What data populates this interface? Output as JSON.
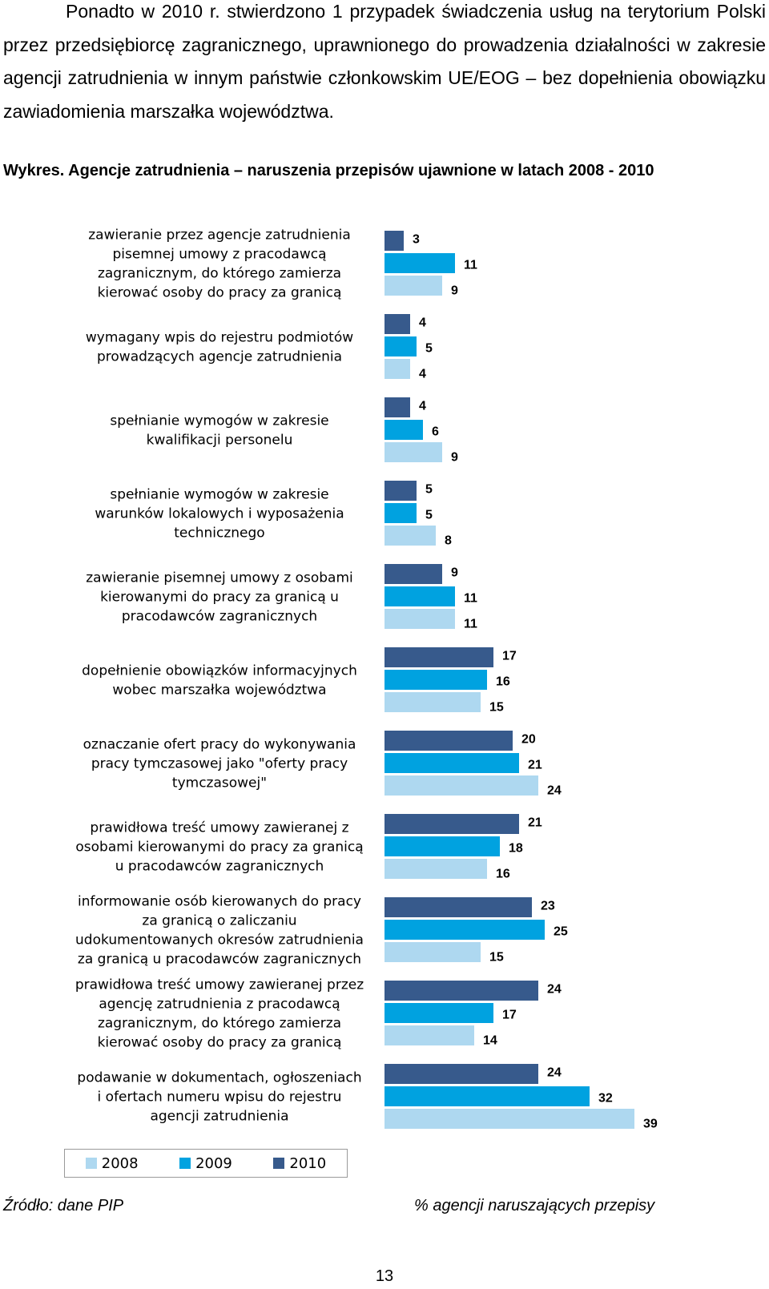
{
  "intro_paragraph": "Ponadto w 2010 r. stwierdzono 1 przypadek świadczenia usług na terytorium Polski przez przedsiębiorcę zagranicznego, uprawnionego do prowadzenia działalności w zakresie agencji zatrudnienia w innym państwie członkowskim UE/EOG – bez dopełnienia obowiązku zawiadomienia marszałka województwa.",
  "chart_caption": "Wykres. Agencje zatrudnienia – naruszenia przepisów ujawnione w latach 2008 - 2010",
  "chart_data": {
    "type": "bar",
    "orientation": "horizontal",
    "title": "Wykres. Agencje zatrudnienia – naruszenia przepisów ujawnione w latach 2008 - 2010",
    "categories": [
      [
        "zawieranie przez agencje zatrudnienia",
        "pisemnej umowy z pracodawcą",
        "zagranicznym, do którego zamierza",
        "kierować osoby do pracy za granicą"
      ],
      [
        "wymagany wpis do rejestru podmiotów",
        "prowadzących agencje zatrudnienia"
      ],
      [
        "spełnianie wymogów w zakresie",
        "kwalifikacji personelu"
      ],
      [
        "spełnianie wymogów w zakresie",
        "warunków lokalowych i wyposażenia",
        "technicznego"
      ],
      [
        "zawieranie pisemnej umowy z osobami",
        "kierowanymi do pracy za granicą u",
        "pracodawców zagranicznych"
      ],
      [
        "dopełnienie obowiązków informacyjnych",
        "wobec marszałka województwa"
      ],
      [
        "oznaczanie ofert pracy do wykonywania",
        "pracy tymczasowej jako \"oferty pracy",
        "tymczasowej\""
      ],
      [
        "prawidłowa treść umowy zawieranej z",
        "osobami kierowanymi do pracy za granicą",
        "u pracodawców zagranicznych"
      ],
      [
        "informowanie osób kierowanych do pracy",
        "za granicą o zaliczaniu",
        "udokumentowanych okresów zatrudnienia",
        "za granicą u pracodawców zagranicznych"
      ],
      [
        "prawidłowa treść umowy zawieranej przez",
        "agencję zatrudnienia z pracodawcą",
        "zagranicznym, do którego zamierza",
        "kierować osoby do pracy za granicą"
      ],
      [
        "podawanie w dokumentach, ogłoszeniach",
        "i ofertach numeru wpisu do rejestru",
        "agencji zatrudnienia"
      ]
    ],
    "series": [
      {
        "name": "2010",
        "color": "#375a8c",
        "values": [
          3,
          4,
          4,
          5,
          9,
          17,
          20,
          21,
          23,
          24,
          24
        ]
      },
      {
        "name": "2009",
        "color": "#00a2e0",
        "values": [
          11,
          5,
          6,
          5,
          11,
          16,
          21,
          18,
          25,
          17,
          32
        ]
      },
      {
        "name": "2008",
        "color": "#aed8f0",
        "values": [
          9,
          4,
          9,
          8,
          11,
          15,
          24,
          16,
          15,
          14,
          39
        ]
      }
    ],
    "legend_order": [
      "2008",
      "2009",
      "2010"
    ],
    "legend_position": "bottom-left",
    "grid": false,
    "data_labels": true,
    "xlim": [
      0,
      40
    ]
  },
  "source_label": "Źródło: dane PIP",
  "unit_label": "% agencji naruszających przepisy",
  "page_number": "13"
}
